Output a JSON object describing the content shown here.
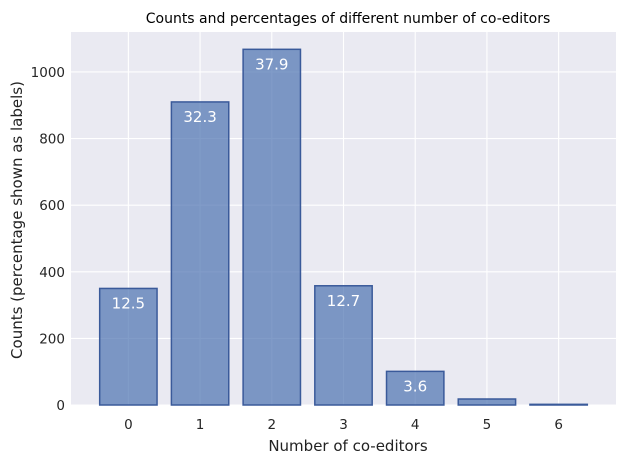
{
  "chart_data": {
    "type": "bar",
    "title": "Counts and percentages of different number of co-editors",
    "xlabel": "Number of co-editors",
    "ylabel": "Counts (percentage shown as labels)",
    "categories": [
      "0",
      "1",
      "2",
      "3",
      "4",
      "5",
      "6"
    ],
    "values": [
      350,
      910,
      1068,
      358,
      101,
      18,
      2
    ],
    "percent_labels": [
      "12.5",
      "32.3",
      "37.9",
      "12.7",
      "3.6",
      "",
      ""
    ],
    "yticks": [
      0,
      200,
      400,
      600,
      800,
      1000
    ],
    "ylim": [
      0,
      1120
    ],
    "grid": true,
    "colors": {
      "background": "#eaeaf2",
      "grid": "#ffffff",
      "bar_fill": "#4c72b0",
      "bar_edge": "#3a5a9a",
      "label": "#ffffff"
    }
  }
}
